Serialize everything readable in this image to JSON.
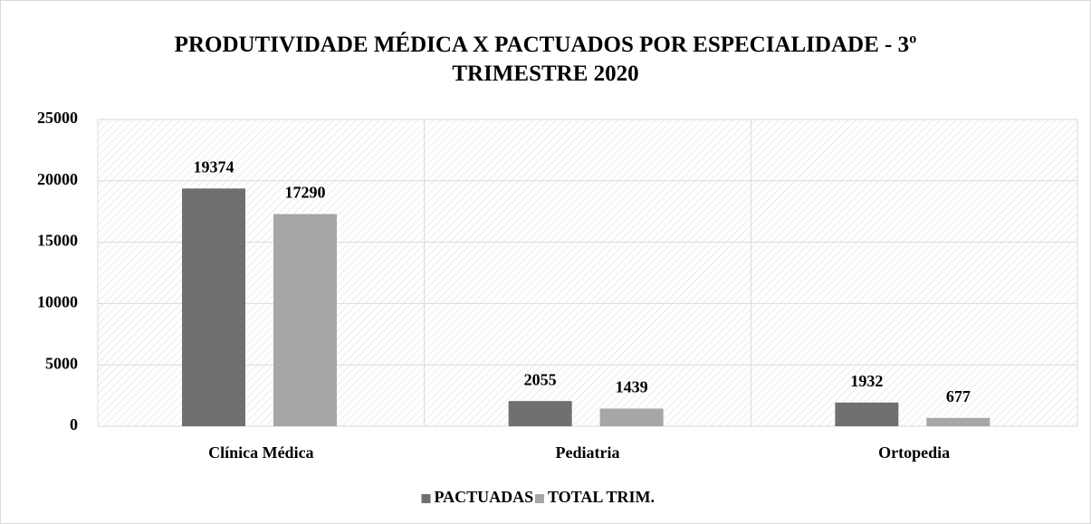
{
  "chart_data": {
    "type": "bar",
    "title": "PRODUTIVIDADE MÉDICA X PACTUADOS POR ESPECIALIDADE - 3º TRIMESTRE 2020",
    "categories": [
      "Clínica Médica",
      "Pediatria",
      "Ortopedia"
    ],
    "series": [
      {
        "name": "PACTUADAS",
        "color": "#707070",
        "values": [
          19374,
          2055,
          1932
        ]
      },
      {
        "name": "TOTAL TRIM.",
        "color": "#a6a6a6",
        "values": [
          17290,
          1439,
          677
        ]
      }
    ],
    "ylim": [
      0,
      25000
    ],
    "yticks": [
      0,
      5000,
      10000,
      15000,
      20000,
      25000
    ],
    "grid": true,
    "legend": "bottom"
  }
}
